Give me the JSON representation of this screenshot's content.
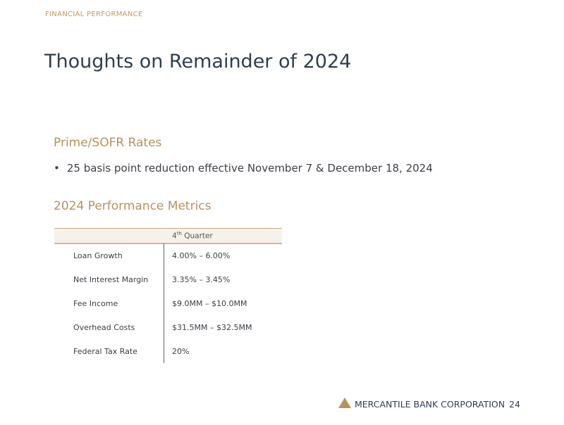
{
  "header": {
    "eyebrow": "FINANCIAL PERFORMANCE",
    "title": "Thoughts on Remainder of 2024"
  },
  "rates": {
    "heading": "Prime/SOFR Rates",
    "bullets": [
      "25 basis point reduction effective November 7 & December 18, 2024"
    ]
  },
  "metrics": {
    "heading": "2024 Performance Metrics",
    "column_header": {
      "base": "4",
      "sup": "th",
      "rest": " Quarter"
    },
    "rows": [
      {
        "label": "Loan Growth",
        "value": "4.00% – 6.00%"
      },
      {
        "label": "Net Interest Margin",
        "value": "3.35% – 3.45%"
      },
      {
        "label": "Fee Income",
        "value": "$9.0MM – $10.0MM"
      },
      {
        "label": "Overhead Costs",
        "value": "$31.5MM – $32.5MM"
      },
      {
        "label": "Federal Tax Rate",
        "value": "20%"
      }
    ]
  },
  "footer": {
    "brand": "MERCANTILE BANK CORPORATION",
    "page": "24",
    "logo_icon": "triangle-logo-icon",
    "accent": "#b8925a"
  }
}
